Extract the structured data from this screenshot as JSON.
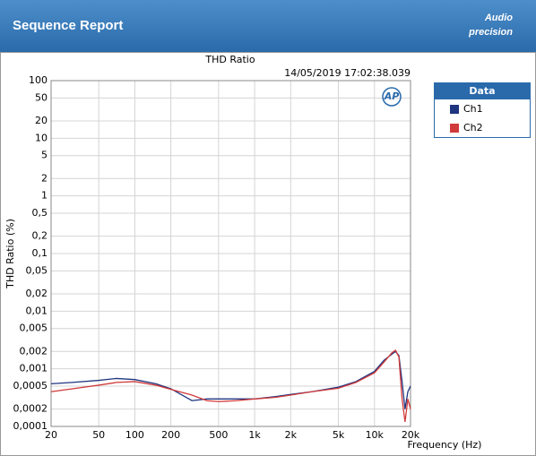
{
  "header": {
    "title": "Sequence Report",
    "logo_top": "Audio",
    "logo_bottom": "precision"
  },
  "chart_data": {
    "type": "line",
    "title": "THD Ratio",
    "timestamp": "14/05/2019 17:02:38.039",
    "plot_logo": "AP",
    "xlabel": "Frequency (Hz)",
    "ylabel": "THD Ratio (%)",
    "legend_title": "Data",
    "legend": "outside-right",
    "xscale": "log",
    "yscale": "log",
    "grid": true,
    "xlim": [
      20,
      20000
    ],
    "ylim": [
      0.0001,
      100
    ],
    "xticks": [
      20,
      50,
      100,
      200,
      500,
      {
        "value": 1000,
        "label": "1k"
      },
      {
        "value": 2000,
        "label": "2k"
      },
      {
        "value": 5000,
        "label": "5k"
      },
      {
        "value": 10000,
        "label": "10k"
      },
      {
        "value": 20000,
        "label": "20k"
      }
    ],
    "yticks": [
      100,
      50,
      20,
      10,
      5,
      2,
      1,
      {
        "value": 0.5,
        "label": "0,5"
      },
      {
        "value": 0.2,
        "label": "0,2"
      },
      {
        "value": 0.1,
        "label": "0,1"
      },
      {
        "value": 0.05,
        "label": "0,05"
      },
      {
        "value": 0.02,
        "label": "0,02"
      },
      {
        "value": 0.01,
        "label": "0,01"
      },
      {
        "value": 0.005,
        "label": "0,005"
      },
      {
        "value": 0.002,
        "label": "0,002"
      },
      {
        "value": 0.001,
        "label": "0,001"
      },
      {
        "value": 0.0005,
        "label": "0,0005"
      },
      {
        "value": 0.0002,
        "label": "0,0002"
      },
      {
        "value": 0.0001,
        "label": "0,0001"
      }
    ],
    "x": [
      20,
      30,
      50,
      70,
      100,
      150,
      200,
      300,
      400,
      500,
      700,
      1000,
      1500,
      2000,
      3000,
      5000,
      7000,
      10000,
      12000,
      14000,
      15000,
      16000,
      17000,
      18000,
      19000,
      20000
    ],
    "series": [
      {
        "name": "Ch1",
        "color": "#1f3580",
        "values": [
          0.00055,
          0.00058,
          0.00063,
          0.00068,
          0.00065,
          0.00055,
          0.00045,
          0.00028,
          0.0003,
          0.0003,
          0.0003,
          0.0003,
          0.00033,
          0.00036,
          0.0004,
          0.00048,
          0.0006,
          0.0009,
          0.0014,
          0.0018,
          0.002,
          0.0017,
          0.0006,
          0.0002,
          0.0004,
          0.0005
        ]
      },
      {
        "name": "Ch2",
        "color": "#d03a3a",
        "values": [
          0.0004,
          0.00045,
          0.00052,
          0.00058,
          0.0006,
          0.00052,
          0.00044,
          0.00035,
          0.00028,
          0.00027,
          0.00028,
          0.0003,
          0.00032,
          0.00035,
          0.0004,
          0.00046,
          0.00058,
          0.00085,
          0.0013,
          0.0019,
          0.0021,
          0.0016,
          0.0003,
          0.00012,
          0.0003,
          0.0002
        ]
      }
    ]
  }
}
